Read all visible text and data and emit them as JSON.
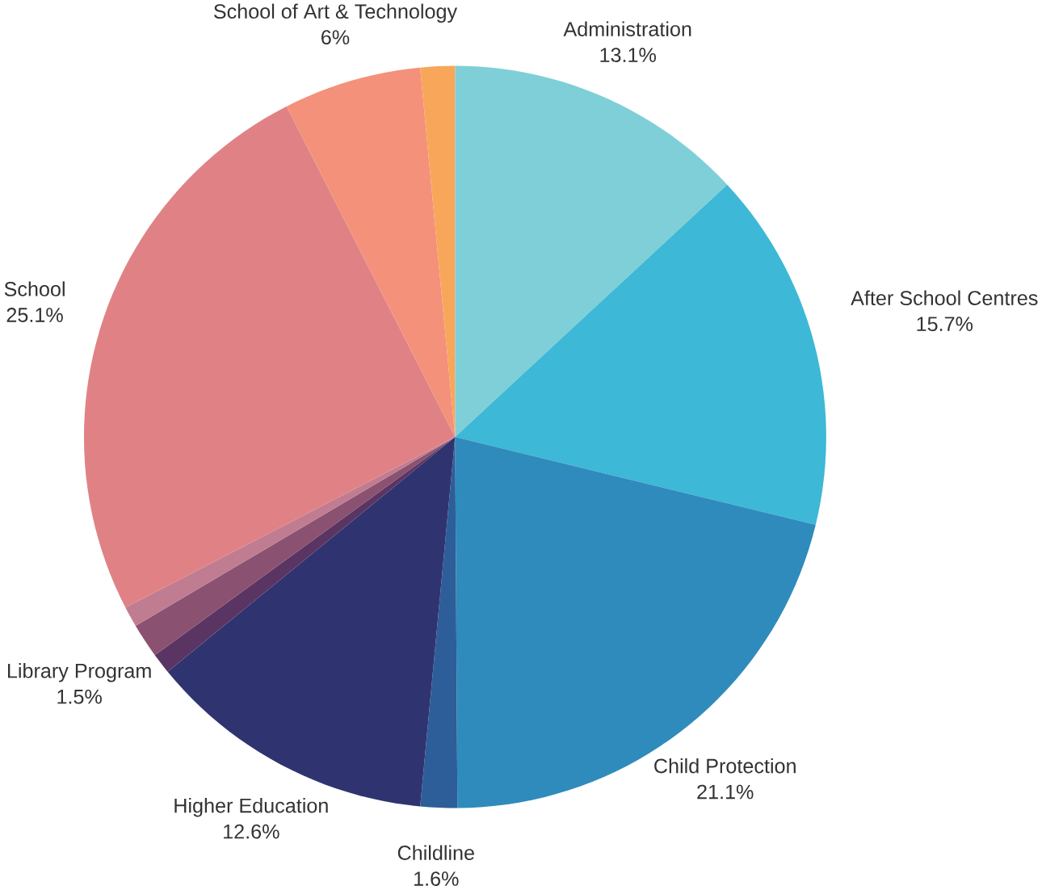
{
  "chart_data": {
    "type": "pie",
    "categories": [
      "Administration",
      "After School Centres",
      "Child Protection",
      "Childline",
      "Higher Education",
      null,
      "Library Program",
      null,
      "School",
      "School of Art & Technology",
      null
    ],
    "values": [
      13.1,
      15.7,
      21.1,
      1.6,
      12.6,
      0.9,
      1.5,
      0.9,
      25.1,
      6,
      1.5
    ],
    "value_labels": [
      "13.1%",
      "15.7%",
      "21.1%",
      "1.6%",
      "12.6%",
      null,
      "1.5%",
      null,
      "25.1%",
      "6%",
      null
    ],
    "colors": [
      "#7fcfd8",
      "#3db8d6",
      "#2f8bbb",
      "#2e5e99",
      "#2f3470",
      "#5a3563",
      "#8a5270",
      "#c07c90",
      "#e08285",
      "#f4917a",
      "#f8a65a"
    ]
  }
}
